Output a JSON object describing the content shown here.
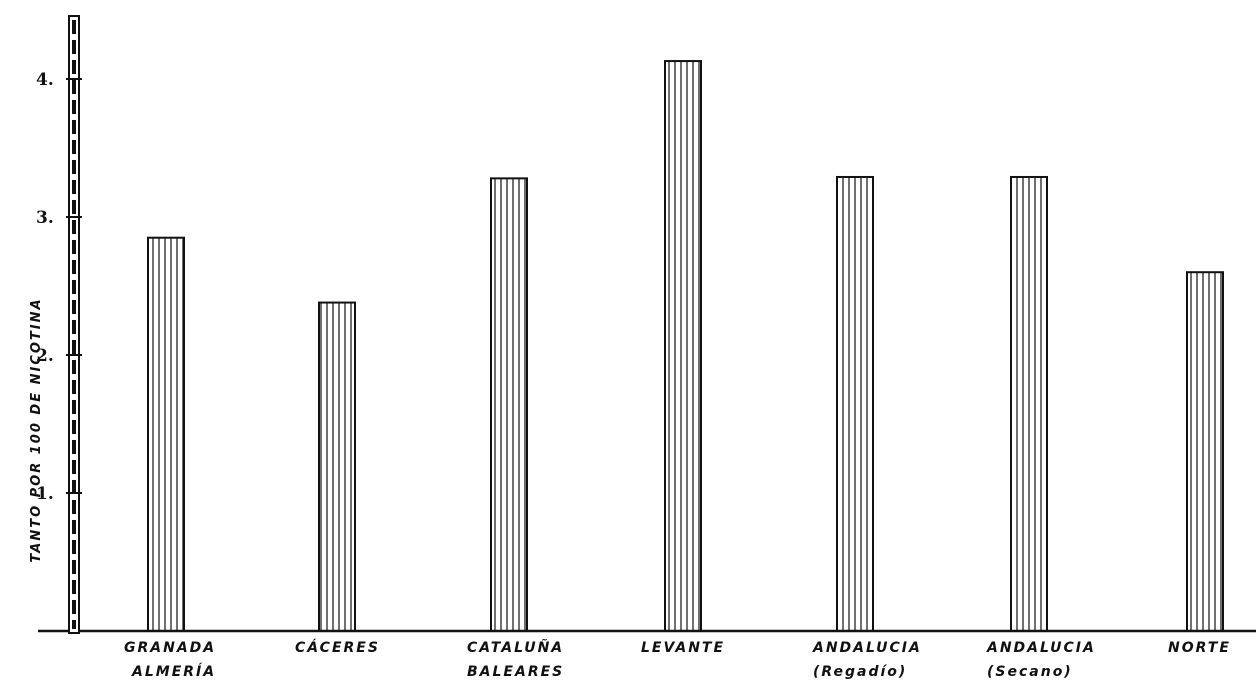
{
  "chart_data": {
    "type": "bar",
    "title": "",
    "xlabel": "",
    "ylabel": "TANTO POR 100 DE NICOTINA",
    "ylim": [
      0,
      4.5
    ],
    "yticks": [
      1,
      2,
      3,
      4
    ],
    "ytick_labels": [
      "1.",
      "2.",
      "3.",
      "4."
    ],
    "grid": false,
    "categories": [
      [
        "GRANADA",
        "ALMERÍA"
      ],
      [
        "CÁCERES"
      ],
      [
        "CATALUÑA",
        "BALEARES"
      ],
      [
        "LEVANTE"
      ],
      [
        "ANDALUCIA",
        "(Regadío)"
      ],
      [
        "ANDALUCIA",
        "(Secano)"
      ],
      [
        "NORTE"
      ]
    ],
    "values": [
      2.85,
      2.38,
      3.28,
      4.13,
      3.29,
      3.29,
      2.6
    ],
    "bar_fill": "vertical-hatch",
    "colors": {
      "ink": "#111111",
      "background": "#ffffff"
    }
  }
}
